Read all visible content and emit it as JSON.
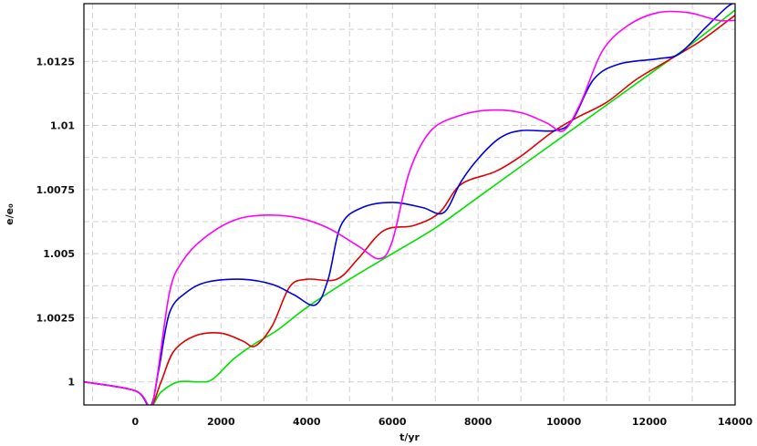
{
  "chart_data": {
    "type": "line",
    "xlabel": "t/yr",
    "ylabel": "e/e₀",
    "xlim": [
      -1200,
      14000
    ],
    "ylim": [
      0.9991,
      1.01475
    ],
    "x_ticks": [
      0,
      2000,
      4000,
      6000,
      8000,
      10000,
      12000,
      14000
    ],
    "x_tick_labels": [
      "0",
      "2000",
      "4000",
      "6000",
      "8000",
      "10000",
      "12000",
      "14000"
    ],
    "y_ticks": [
      1.0,
      1.0025,
      1.005,
      1.0075,
      1.01,
      1.0125
    ],
    "y_tick_labels": [
      "1",
      "1.0025",
      "1.005",
      "1.0075",
      "1.01",
      "1.0125"
    ],
    "grid": true,
    "series": [
      {
        "color": "#00e000",
        "points": [
          [
            -1200,
            1.0
          ],
          [
            0,
            0.99965
          ],
          [
            350,
            0.99905
          ],
          [
            600,
            0.9996
          ],
          [
            1000,
            1.0
          ],
          [
            1500,
            1.0
          ],
          [
            1800,
            1.0001
          ],
          [
            2300,
            1.0009
          ],
          [
            2800,
            1.0015
          ],
          [
            3300,
            1.002
          ],
          [
            4000,
            1.0029
          ],
          [
            5000,
            1.004
          ],
          [
            6000,
            1.005
          ],
          [
            7000,
            1.006
          ],
          [
            8000,
            1.0072
          ],
          [
            9000,
            1.0084
          ],
          [
            10000,
            1.0096
          ],
          [
            11000,
            1.0108
          ],
          [
            12000,
            1.012
          ],
          [
            13000,
            1.0132
          ],
          [
            14000,
            1.0145
          ]
        ]
      },
      {
        "color": "#e00000",
        "points": [
          [
            -1200,
            1.0
          ],
          [
            0,
            0.99965
          ],
          [
            350,
            0.99905
          ],
          [
            600,
            1.0
          ],
          [
            900,
            1.0012
          ],
          [
            1400,
            1.0018
          ],
          [
            2000,
            1.0019
          ],
          [
            2500,
            1.0016
          ],
          [
            2800,
            1.0014
          ],
          [
            3200,
            1.0022
          ],
          [
            3600,
            1.0037
          ],
          [
            4000,
            1.004
          ],
          [
            4700,
            1.004
          ],
          [
            5200,
            1.0048
          ],
          [
            5800,
            1.0059
          ],
          [
            6500,
            1.0061
          ],
          [
            7100,
            1.0066
          ],
          [
            7600,
            1.0077
          ],
          [
            8400,
            1.0082
          ],
          [
            9000,
            1.0088
          ],
          [
            9700,
            1.0097
          ],
          [
            10300,
            1.0103
          ],
          [
            11000,
            1.0109
          ],
          [
            11700,
            1.0118
          ],
          [
            12400,
            1.0125
          ],
          [
            13200,
            1.0133
          ],
          [
            14000,
            1.0143
          ]
        ]
      },
      {
        "color": "#0000e0",
        "points": [
          [
            -1200,
            1.0
          ],
          [
            0,
            0.99965
          ],
          [
            350,
            0.99905
          ],
          [
            550,
            1.0005
          ],
          [
            800,
            1.0027
          ],
          [
            1200,
            1.0035
          ],
          [
            1700,
            1.0039
          ],
          [
            2500,
            1.004
          ],
          [
            3200,
            1.0038
          ],
          [
            3700,
            1.0034
          ],
          [
            4200,
            1.003
          ],
          [
            4500,
            1.004
          ],
          [
            4800,
            1.0061
          ],
          [
            5300,
            1.0068
          ],
          [
            6000,
            1.007
          ],
          [
            6700,
            1.0068
          ],
          [
            7200,
            1.0066
          ],
          [
            7600,
            1.0078
          ],
          [
            8000,
            1.0087
          ],
          [
            8500,
            1.0095
          ],
          [
            9000,
            1.0098
          ],
          [
            9800,
            1.0098
          ],
          [
            10200,
            1.0102
          ],
          [
            10700,
            1.0118
          ],
          [
            11300,
            1.0124
          ],
          [
            12200,
            1.0126
          ],
          [
            12700,
            1.0128
          ],
          [
            13300,
            1.0138
          ],
          [
            13800,
            1.0146
          ],
          [
            14000,
            1.0148
          ]
        ]
      },
      {
        "color": "#ff00ff",
        "points": [
          [
            -1200,
            1.0
          ],
          [
            0,
            0.99965
          ],
          [
            350,
            0.99905
          ],
          [
            500,
            1.0001
          ],
          [
            800,
            1.0035
          ],
          [
            1100,
            1.0047
          ],
          [
            1600,
            1.0056
          ],
          [
            2300,
            1.0063
          ],
          [
            3000,
            1.0065
          ],
          [
            3800,
            1.0064
          ],
          [
            4500,
            1.006
          ],
          [
            5200,
            1.0053
          ],
          [
            5700,
            1.0048
          ],
          [
            6000,
            1.0055
          ],
          [
            6400,
            1.0082
          ],
          [
            6900,
            1.0098
          ],
          [
            7600,
            1.0104
          ],
          [
            8300,
            1.0106
          ],
          [
            9000,
            1.0105
          ],
          [
            9600,
            1.0101
          ],
          [
            10000,
            1.0098
          ],
          [
            10400,
            1.0109
          ],
          [
            10900,
            1.0129
          ],
          [
            11500,
            1.0139
          ],
          [
            12200,
            1.0144
          ],
          [
            12900,
            1.0144
          ],
          [
            13600,
            1.0141
          ],
          [
            14000,
            1.0141
          ]
        ]
      }
    ]
  }
}
